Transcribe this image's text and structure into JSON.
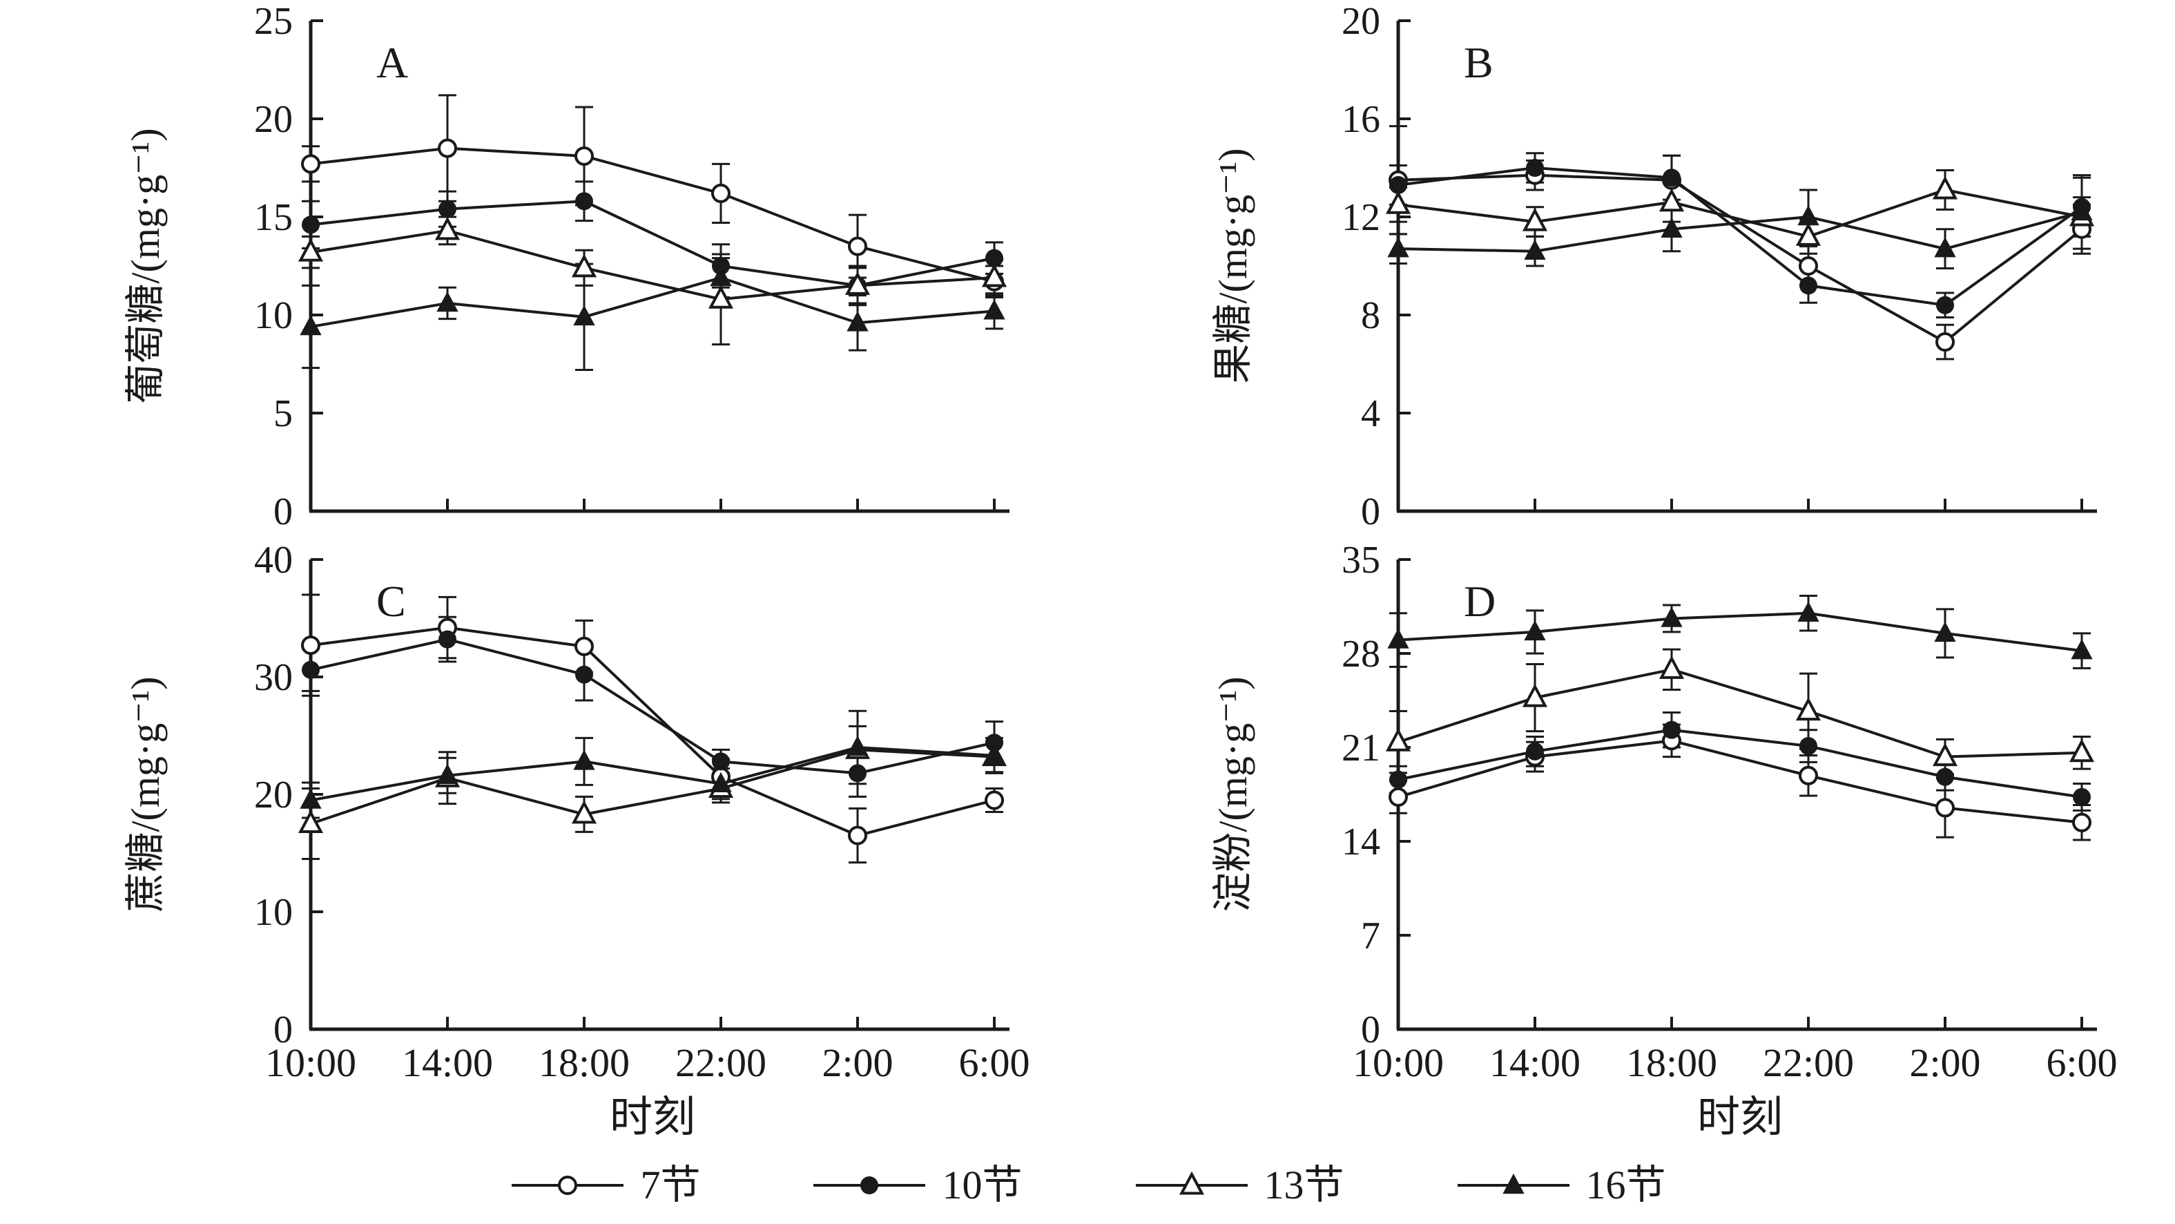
{
  "figure": {
    "xlabel": "时刻"
  },
  "legend": {
    "items": [
      {
        "label": "7节",
        "marker": "open-circle"
      },
      {
        "label": "10节",
        "marker": "filled-circle"
      },
      {
        "label": "13节",
        "marker": "open-triangle"
      },
      {
        "label": "16节",
        "marker": "filled-triangle"
      }
    ],
    "position": "bottom"
  },
  "chart_data": [
    {
      "panel": "A",
      "type": "line",
      "title": "",
      "ylabel": "葡萄糖/(mg·g⁻¹)",
      "xlabel": "",
      "ylim": [
        0,
        25
      ],
      "yticks": [
        0,
        5,
        10,
        15,
        20,
        25
      ],
      "grid": false,
      "x": [
        "10:00",
        "14:00",
        "18:00",
        "22:00",
        "2:00",
        "6:00"
      ],
      "series": [
        {
          "name": "7节",
          "marker": "open-circle",
          "values": [
            17.7,
            18.5,
            18.1,
            16.2,
            13.5,
            11.7
          ],
          "errors": [
            0.9,
            2.7,
            2.5,
            1.5,
            1.6,
            0.8
          ]
        },
        {
          "name": "10节",
          "marker": "filled-circle",
          "values": [
            14.6,
            15.4,
            15.8,
            12.5,
            11.5,
            12.9
          ],
          "errors": [
            1.2,
            0.9,
            1.0,
            1.1,
            0.9,
            0.8
          ]
        },
        {
          "name": "13节",
          "marker": "open-triangle",
          "values": [
            13.2,
            14.3,
            12.4,
            10.8,
            11.5,
            11.9
          ],
          "errors": [
            0.8,
            0.7,
            0.9,
            2.3,
            1.0,
            0.9
          ]
        },
        {
          "name": "16节",
          "marker": "filled-triangle",
          "values": [
            9.4,
            10.6,
            9.9,
            11.9,
            9.6,
            10.2
          ],
          "errors": [
            2.1,
            0.8,
            2.7,
            1.0,
            1.4,
            0.9
          ]
        }
      ]
    },
    {
      "panel": "B",
      "type": "line",
      "title": "",
      "ylabel": "果糖/(mg·g⁻¹)",
      "xlabel": "",
      "ylim": [
        0,
        20
      ],
      "yticks": [
        0,
        4,
        8,
        12,
        16,
        20
      ],
      "grid": false,
      "x": [
        "10:00",
        "14:00",
        "18:00",
        "22:00",
        "2:00",
        "6:00"
      ],
      "series": [
        {
          "name": "7节",
          "marker": "open-circle",
          "values": [
            13.5,
            13.7,
            13.5,
            10.0,
            6.9,
            11.5
          ],
          "errors": [
            2.2,
            0.6,
            1.0,
            0.8,
            0.7,
            1.0
          ]
        },
        {
          "name": "10节",
          "marker": "filled-circle",
          "values": [
            13.3,
            14.0,
            13.6,
            9.2,
            8.4,
            12.4
          ],
          "errors": [
            0.8,
            0.6,
            0.9,
            0.7,
            0.5,
            1.2
          ]
        },
        {
          "name": "13节",
          "marker": "open-triangle",
          "values": [
            12.5,
            11.8,
            12.6,
            11.2,
            13.1,
            12.0
          ],
          "errors": [
            0.7,
            0.6,
            0.8,
            0.7,
            0.8,
            0.8
          ]
        },
        {
          "name": "16节",
          "marker": "filled-triangle",
          "values": [
            10.7,
            10.6,
            11.5,
            12.0,
            10.7,
            12.2
          ],
          "errors": [
            0.6,
            0.6,
            0.9,
            1.1,
            0.8,
            1.5
          ]
        }
      ]
    },
    {
      "panel": "C",
      "type": "line",
      "title": "",
      "ylabel": "蔗糖/(mg·g⁻¹)",
      "xlabel": "时刻",
      "ylim": [
        0,
        40
      ],
      "yticks": [
        0,
        10,
        20,
        30,
        40
      ],
      "grid": false,
      "x": [
        "10:00",
        "14:00",
        "18:00",
        "22:00",
        "2:00",
        "6:00"
      ],
      "series": [
        {
          "name": "7节",
          "marker": "open-circle",
          "values": [
            32.7,
            34.2,
            32.6,
            21.5,
            16.5,
            19.5
          ],
          "errors": [
            4.3,
            2.6,
            2.2,
            1.5,
            2.3,
            1.0
          ]
        },
        {
          "name": "10节",
          "marker": "filled-circle",
          "values": [
            30.6,
            33.2,
            30.2,
            22.8,
            21.8,
            24.4
          ],
          "errors": [
            1.8,
            1.9,
            2.2,
            1.0,
            2.0,
            1.8
          ]
        },
        {
          "name": "13节",
          "marker": "open-triangle",
          "values": [
            17.5,
            21.4,
            18.3,
            20.5,
            23.8,
            23.2
          ],
          "errors": [
            3.0,
            2.2,
            1.5,
            1.2,
            2.0,
            1.3
          ]
        },
        {
          "name": "16节",
          "marker": "filled-triangle",
          "values": [
            19.5,
            21.6,
            22.8,
            20.9,
            24.0,
            23.3
          ],
          "errors": [
            1.5,
            1.5,
            2.0,
            1.3,
            3.1,
            1.5
          ]
        }
      ]
    },
    {
      "panel": "D",
      "type": "line",
      "title": "",
      "ylabel": "淀粉/(mg·g⁻¹)",
      "xlabel": "时刻",
      "ylim": [
        0,
        35
      ],
      "yticks": [
        0,
        7,
        14,
        21,
        28,
        35
      ],
      "grid": false,
      "x": [
        "10:00",
        "14:00",
        "18:00",
        "22:00",
        "2:00",
        "6:00"
      ],
      "series": [
        {
          "name": "7节",
          "marker": "open-circle",
          "values": [
            17.3,
            20.3,
            21.5,
            18.9,
            16.5,
            15.4
          ],
          "errors": [
            1.2,
            1.1,
            1.2,
            1.5,
            2.2,
            1.3
          ]
        },
        {
          "name": "10节",
          "marker": "filled-circle",
          "values": [
            18.6,
            20.7,
            22.3,
            21.1,
            18.8,
            17.3
          ],
          "errors": [
            1.0,
            1.1,
            1.3,
            1.2,
            1.0,
            1.0
          ]
        },
        {
          "name": "13节",
          "marker": "open-triangle",
          "values": [
            21.4,
            24.7,
            26.8,
            23.7,
            20.3,
            20.6
          ],
          "errors": [
            2.3,
            2.5,
            1.5,
            2.8,
            1.3,
            1.2
          ]
        },
        {
          "name": "16节",
          "marker": "filled-triangle",
          "values": [
            29.0,
            29.6,
            30.6,
            31.0,
            29.5,
            28.2
          ],
          "errors": [
            2.0,
            1.6,
            1.0,
            1.3,
            1.8,
            1.3
          ]
        }
      ]
    }
  ]
}
